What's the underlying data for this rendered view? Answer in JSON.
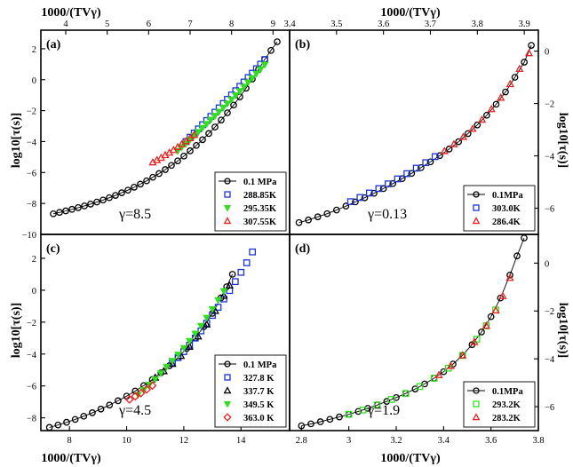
{
  "axis_titles": {
    "top": "1000/(TVγ)",
    "bottom": "1000/(TVγ)",
    "left": "log10[τ(s)]",
    "right": "log10[τ(s)]"
  },
  "chart_data": [
    {
      "panel": "(a)",
      "type": "scatter",
      "gamma_label": "γ=8.5",
      "xlabel": "1000/(TVγ)",
      "xlabel_position": "top",
      "ylabel": "log10[τ(s)]",
      "ylabel_position": "left",
      "xlim": [
        3.4,
        9.4
      ],
      "ylim": [
        -10,
        3.2
      ],
      "xticks": [
        4,
        5,
        6,
        7,
        8,
        9
      ],
      "yticks": [
        -10,
        -8,
        -6,
        -4,
        -2,
        0,
        2
      ],
      "legend": "bottom-right",
      "series": [
        {
          "name": "0.1 MPa",
          "marker": "circle",
          "color": "#000000",
          "line": true,
          "x": [
            3.7,
            3.85,
            4.0,
            4.15,
            4.3,
            4.45,
            4.6,
            4.75,
            4.9,
            5.05,
            5.2,
            5.35,
            5.5,
            5.65,
            5.8,
            5.95,
            6.1,
            6.25,
            6.4,
            6.55,
            6.7,
            6.85,
            7.0,
            7.15,
            7.3,
            7.45,
            7.6,
            7.75,
            7.9,
            8.05,
            8.2,
            8.35,
            8.5,
            8.65,
            8.8,
            8.95,
            9.1
          ],
          "y": [
            -8.67,
            -8.58,
            -8.48,
            -8.38,
            -8.27,
            -8.16,
            -8.04,
            -7.91,
            -7.78,
            -7.63,
            -7.48,
            -7.31,
            -7.14,
            -6.95,
            -6.75,
            -6.54,
            -6.31,
            -6.07,
            -5.81,
            -5.54,
            -5.25,
            -4.94,
            -4.6,
            -4.25,
            -3.88,
            -3.48,
            -3.06,
            -2.61,
            -2.14,
            -1.64,
            -1.11,
            -0.55,
            0.04,
            0.66,
            1.31,
            1.89,
            2.45
          ]
        },
        {
          "name": "288.85K",
          "marker": "square",
          "color": "#1a33d9",
          "line": false,
          "x": [
            6.9,
            7.0,
            7.1,
            7.2,
            7.3,
            7.4,
            7.5,
            7.6,
            7.7,
            7.8,
            7.9,
            8.0,
            8.1,
            8.2,
            8.3,
            8.4,
            8.5,
            8.6,
            8.7,
            8.8
          ],
          "y": [
            -4.0,
            -3.72,
            -3.45,
            -3.18,
            -2.91,
            -2.64,
            -2.37,
            -2.1,
            -1.82,
            -1.54,
            -1.27,
            -0.99,
            -0.71,
            -0.43,
            -0.15,
            0.14,
            0.42,
            0.71,
            1.0,
            1.3
          ]
        },
        {
          "name": "295.35K",
          "marker": "triangle-down",
          "color": "#33dd22",
          "line": false,
          "x": [
            6.7,
            6.8,
            6.9,
            7.0,
            7.1,
            7.2,
            7.3,
            7.4,
            7.5,
            7.6,
            7.7,
            7.8,
            7.9,
            8.0,
            8.1,
            8.2,
            8.3,
            8.4,
            8.5,
            8.6,
            8.7,
            8.8
          ],
          "y": [
            -4.6,
            -4.36,
            -4.12,
            -3.87,
            -3.62,
            -3.37,
            -3.11,
            -2.85,
            -2.59,
            -2.33,
            -2.07,
            -1.8,
            -1.54,
            -1.27,
            -1.0,
            -0.73,
            -0.45,
            -0.17,
            0.11,
            0.39,
            0.68,
            0.97
          ]
        },
        {
          "name": "307.55K",
          "marker": "triangle-up",
          "color": "#e62222",
          "line": false,
          "x": [
            6.1,
            6.2,
            6.3,
            6.4,
            6.5,
            6.6,
            6.7,
            6.8,
            6.9,
            7.0,
            7.1
          ],
          "y": [
            -5.35,
            -5.2,
            -5.05,
            -4.88,
            -4.72,
            -4.55,
            -4.36,
            -4.17,
            -3.98,
            -3.78,
            -3.57
          ]
        }
      ]
    },
    {
      "panel": "(b)",
      "type": "scatter",
      "gamma_label": "γ=0.13",
      "xlabel": "1000/(TVγ)",
      "xlabel_position": "top",
      "ylabel": "log10[τ(s)]",
      "ylabel_position": "right",
      "xlim": [
        3.4,
        3.93
      ],
      "ylim": [
        -7.0,
        0.8
      ],
      "xticks": [
        3.4,
        3.5,
        3.6,
        3.7,
        3.8,
        3.9
      ],
      "yticks": [
        -6,
        -4,
        -2,
        0
      ],
      "legend": "bottom-right",
      "series": [
        {
          "name": "0.1MPa",
          "marker": "circle",
          "color": "#000000",
          "line": true,
          "x": [
            3.42,
            3.44,
            3.46,
            3.48,
            3.5,
            3.52,
            3.54,
            3.56,
            3.58,
            3.6,
            3.62,
            3.64,
            3.66,
            3.68,
            3.7,
            3.72,
            3.74,
            3.76,
            3.78,
            3.8,
            3.82,
            3.84,
            3.86,
            3.88,
            3.9,
            3.915
          ],
          "y": [
            -6.55,
            -6.45,
            -6.33,
            -6.21,
            -6.07,
            -5.92,
            -5.76,
            -5.6,
            -5.43,
            -5.25,
            -5.06,
            -4.87,
            -4.67,
            -4.45,
            -4.23,
            -3.99,
            -3.74,
            -3.46,
            -3.15,
            -2.82,
            -2.45,
            -2.03,
            -1.56,
            -1.0,
            -0.42,
            0.22
          ]
        },
        {
          "name": "303.0K",
          "marker": "square",
          "color": "#1a33d9",
          "line": false,
          "x": [
            3.53,
            3.55,
            3.57,
            3.59,
            3.61,
            3.63,
            3.65,
            3.67,
            3.69,
            3.71
          ],
          "y": [
            -5.75,
            -5.59,
            -5.42,
            -5.25,
            -5.07,
            -4.88,
            -4.68,
            -4.47,
            -4.26,
            -4.03
          ]
        },
        {
          "name": "286.4K",
          "marker": "triangle-up",
          "color": "#e62222",
          "line": false,
          "x": [
            3.73,
            3.75,
            3.77,
            3.79,
            3.81,
            3.83,
            3.85,
            3.87,
            3.89,
            3.91
          ],
          "y": [
            -3.82,
            -3.56,
            -3.28,
            -2.97,
            -2.62,
            -2.22,
            -1.78,
            -1.26,
            -0.68,
            -0.08
          ]
        }
      ]
    },
    {
      "panel": "(c)",
      "type": "scatter",
      "gamma_label": "γ=4.5",
      "xlabel": "1000/(TVγ)",
      "xlabel_position": "bottom",
      "ylabel": "log10[τ(s)]",
      "ylabel_position": "left",
      "xlim": [
        7.0,
        15.7
      ],
      "ylim": [
        -8.8,
        3.5
      ],
      "xticks": [
        8,
        10,
        12,
        14
      ],
      "yticks": [
        -8,
        -6,
        -4,
        -2,
        0,
        2
      ],
      "legend": "bottom-right",
      "series": [
        {
          "name": "0.1 MPa",
          "marker": "circle",
          "color": "#000000",
          "line": true,
          "x": [
            7.3,
            7.6,
            7.9,
            8.2,
            8.5,
            8.8,
            9.1,
            9.4,
            9.7,
            10.0,
            10.3,
            10.6,
            10.9,
            11.2,
            11.5,
            11.8,
            12.1,
            12.4,
            12.7,
            13.0,
            13.3,
            13.5,
            13.7
          ],
          "y": [
            -8.6,
            -8.45,
            -8.28,
            -8.1,
            -7.9,
            -7.68,
            -7.45,
            -7.2,
            -6.93,
            -6.64,
            -6.32,
            -5.98,
            -5.6,
            -5.18,
            -4.73,
            -4.22,
            -3.65,
            -3.0,
            -2.28,
            -1.45,
            -0.48,
            0.22,
            1.0
          ]
        },
        {
          "name": "327.8 K",
          "marker": "square",
          "color": "#1a33d9",
          "line": false,
          "x": [
            11.6,
            11.8,
            12.0,
            12.2,
            12.4,
            12.6,
            12.8,
            13.0,
            13.2,
            13.4,
            13.6,
            13.8,
            14.0,
            14.2,
            14.4
          ],
          "y": [
            -4.55,
            -4.22,
            -3.85,
            -3.45,
            -3.0,
            -2.55,
            -2.07,
            -1.58,
            -1.07,
            -0.55,
            -0.02,
            0.54,
            1.12,
            1.72,
            2.4
          ]
        },
        {
          "name": "337.7 K",
          "marker": "triangle-up",
          "color": "#000000",
          "line": false,
          "x": [
            11.0,
            11.3,
            11.6,
            11.9,
            12.2,
            12.5,
            12.8,
            13.1,
            13.4,
            13.6
          ],
          "y": [
            -5.48,
            -5.08,
            -4.62,
            -4.12,
            -3.55,
            -2.9,
            -2.15,
            -1.3,
            -0.35,
            0.3
          ]
        },
        {
          "name": "349.5 K",
          "marker": "triangle-down",
          "color": "#33dd22",
          "line": false,
          "x": [
            10.4,
            10.6,
            10.8,
            11.0,
            11.2,
            11.4,
            11.6,
            11.8,
            12.0,
            12.2,
            12.4,
            12.6,
            12.8,
            13.0,
            13.2,
            13.4
          ],
          "y": [
            -6.55,
            -6.25,
            -5.92,
            -5.58,
            -5.2,
            -4.8,
            -4.42,
            -4.03,
            -3.62,
            -3.18,
            -2.72,
            -2.23,
            -1.72,
            -1.18,
            -0.62,
            -0.05
          ]
        },
        {
          "name": "363.0 K",
          "marker": "diamond",
          "color": "#e62222",
          "line": false,
          "x": [
            10.1,
            10.3,
            10.5,
            10.7,
            10.9
          ],
          "y": [
            -6.85,
            -6.65,
            -6.45,
            -6.22,
            -5.98
          ]
        }
      ]
    },
    {
      "panel": "(d)",
      "type": "scatter",
      "gamma_label": "γ=1.9",
      "xlabel": "1000/(TVγ)",
      "xlabel_position": "bottom",
      "ylabel": "log10[τ(s)]",
      "ylabel_position": "right",
      "xlim": [
        2.75,
        3.8
      ],
      "ylim": [
        -7.0,
        1.2
      ],
      "xticks": [
        2.8,
        3.0,
        3.2,
        3.4,
        3.6,
        3.8
      ],
      "yticks": [
        -6,
        -4,
        -2,
        0
      ],
      "legend": "bottom-right",
      "series": [
        {
          "name": "0.1MPa",
          "marker": "circle",
          "color": "#000000",
          "line": true,
          "x": [
            2.8,
            2.84,
            2.88,
            2.92,
            2.96,
            3.0,
            3.04,
            3.08,
            3.12,
            3.16,
            3.2,
            3.24,
            3.28,
            3.32,
            3.36,
            3.4,
            3.44,
            3.48,
            3.52,
            3.56,
            3.6,
            3.64,
            3.68,
            3.71,
            3.74
          ],
          "y": [
            -6.8,
            -6.72,
            -6.63,
            -6.53,
            -6.43,
            -6.32,
            -6.2,
            -6.07,
            -5.93,
            -5.78,
            -5.62,
            -5.45,
            -5.26,
            -5.05,
            -4.81,
            -4.54,
            -4.22,
            -3.85,
            -3.41,
            -2.88,
            -2.24,
            -1.46,
            -0.5,
            0.3,
            1.05
          ]
        },
        {
          "name": "293.2K",
          "marker": "square",
          "color": "#33dd22",
          "line": false,
          "x": [
            3.0,
            3.06,
            3.12,
            3.18,
            3.24,
            3.3,
            3.36,
            3.42,
            3.48,
            3.54,
            3.58,
            3.62
          ],
          "y": [
            -6.32,
            -6.14,
            -5.93,
            -5.7,
            -5.45,
            -5.16,
            -4.81,
            -4.39,
            -3.86,
            -3.18,
            -2.62,
            -1.96
          ]
        },
        {
          "name": "283.2K",
          "marker": "triangle-up",
          "color": "#e62222",
          "line": false,
          "x": [
            3.38,
            3.43,
            3.48,
            3.53,
            3.58,
            3.62,
            3.65,
            3.68
          ],
          "y": [
            -4.68,
            -4.3,
            -3.86,
            -3.3,
            -2.62,
            -1.98,
            -1.38,
            -0.62
          ]
        }
      ]
    }
  ]
}
